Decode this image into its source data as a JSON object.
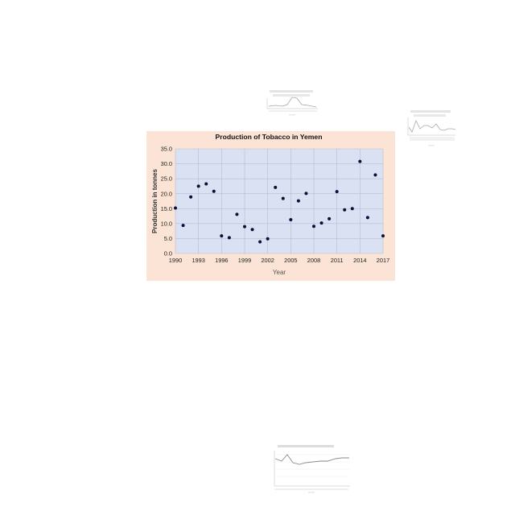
{
  "chart_data": {
    "type": "scatter",
    "title": "Production of Tobacco in Yemen",
    "xlabel": "Year",
    "ylabel": "Production in tonnes",
    "xlim": [
      1990,
      2017
    ],
    "ylim": [
      0,
      35
    ],
    "x_ticks": [
      1990,
      1993,
      1996,
      1999,
      2002,
      2005,
      2008,
      2011,
      2014,
      2017
    ],
    "y_ticks": [
      0,
      5,
      10,
      15,
      20,
      25,
      30,
      35
    ],
    "y_tick_labels": [
      "0.0",
      "5.0",
      "10.0",
      "15.0",
      "20.0",
      "25.0",
      "30.0",
      "35.0"
    ],
    "grid": true,
    "legend": "none",
    "colors": {
      "plot_bg": "#d9e1f2",
      "frame_bg": "#fbe4d5",
      "point": "#0d0d3a",
      "grid": "#b4bfd2"
    },
    "x": [
      1990,
      1991,
      1992,
      1993,
      1994,
      1995,
      1996,
      1997,
      1998,
      1999,
      2000,
      2001,
      2002,
      2003,
      2004,
      2005,
      2006,
      2007,
      2008,
      2009,
      2010,
      2011,
      2012,
      2013,
      2014,
      2015,
      2016,
      2017
    ],
    "y": [
      15.2,
      9.4,
      18.9,
      22.5,
      23.3,
      20.8,
      5.9,
      5.3,
      13.1,
      9.0,
      8.0,
      3.9,
      4.9,
      22.1,
      18.4,
      11.3,
      17.6,
      20.1,
      9.1,
      10.2,
      11.6,
      20.7,
      14.6,
      15.0,
      30.8,
      12.0,
      26.3,
      5.9
    ]
  }
}
